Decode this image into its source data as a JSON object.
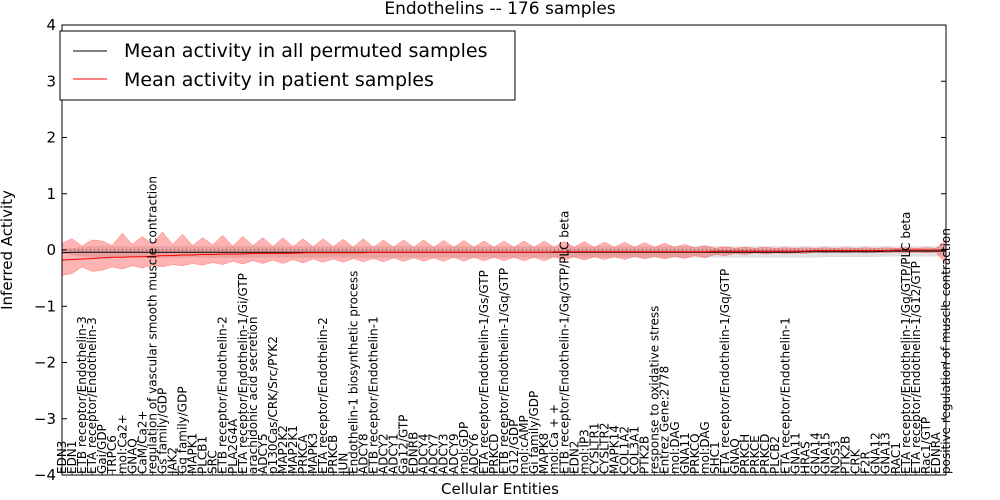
{
  "chart_data": {
    "type": "line",
    "title": "Endothelins -- 176 samples",
    "xlabel": "Cellular Entities",
    "ylabel": "Inferred Activity",
    "ylim": [
      -4,
      4
    ],
    "yticks": [
      -4,
      -3,
      -2,
      -1,
      0,
      1,
      2,
      3,
      4
    ],
    "grid": false,
    "legend_position": "top-left",
    "categories": [
      "EDN3",
      "EDN1",
      "ETB receptor/Endothelin-3",
      "ETA receptor/Endothelin-3",
      "Gai/GDP",
      "TRPC6",
      "mol:Ca2+",
      "GNAQ",
      "CaM/Ca2+",
      "regulation of vascular smooth muscle contraction",
      "Gs family/GDP",
      "JAK2",
      "Gq family/GDP",
      "MAPK1",
      "PLCB1",
      "SRC",
      "ETB receptor/Endothelin-2",
      "PLA2G4A",
      "ETA receptor/Endothelin-1/Gi/GTP",
      "arachidonic acid secretion",
      "ADCY5",
      "p130Cas/CRK/Src/PYK2",
      "MAP2K2",
      "MAP2K1",
      "PRKCA",
      "MAPK3",
      "ETA receptor/Endothelin-2",
      "PRKCB",
      "JUN",
      "Endothelin-1 biosynthetic process",
      "ADCY8",
      "ETB receptor/Endothelin-1",
      "ADCY2",
      "ADCY1",
      "Ga12/GTP",
      "EDNRB",
      "ADCY4",
      "ADCY7",
      "ADCY3",
      "ADCY9",
      "mol:GDP",
      "ADCY6",
      "ETA receptor/Endothelin-1/Gs/GTP",
      "PRKCD",
      "ETB receptor/Endothelin-1/Gq/GTP",
      "G12/GDP",
      "mol:cAMP",
      "Gi family/GDP",
      "MAPK8",
      "mol:Ca + +",
      "ETB receptor/Endothelin-1/Gq/GTP/PLC beta",
      "EDN2",
      "mol:IP3",
      "CYSLTR1",
      "CYSLTR2",
      "MAPK14",
      "COL1A2",
      "COL3A1",
      "PTK2B",
      "response to oxidative stress",
      "Entrez Gene:2778",
      "mol:DAG",
      "GNA11",
      "PRKCQ",
      "mol:DAG",
      "SHC1",
      "ETA receptor/Endothelin-1/Gq/GTP",
      "GNAQ",
      "PRKCH",
      "PRKCE",
      "PRKCD",
      "PLCB2",
      "ETA receptor/Endothelin-1",
      "GNA11",
      "HRAS",
      "GNA14",
      "GNA15",
      "NOS3",
      "PTK2B",
      "CRK",
      "F2R",
      "GNA12",
      "GNA13",
      "RAC1",
      "ETA receptor/Endothelin-1/Gq/GTP/PLC beta",
      "ETA receptor/Endothelin-1/G12/GTP",
      "Rac1/GTP",
      "EDNRA",
      "positive regulation of muscle contraction"
    ],
    "series": [
      {
        "name": "Mean activity in all permuted samples",
        "color": "#000000",
        "values": [
          -0.05,
          -0.04,
          -0.04,
          -0.04,
          -0.04,
          -0.04,
          -0.04,
          -0.04,
          -0.04,
          -0.04,
          -0.04,
          -0.04,
          -0.04,
          -0.04,
          -0.04,
          -0.04,
          -0.04,
          -0.04,
          -0.04,
          -0.04,
          -0.04,
          -0.04,
          -0.04,
          -0.04,
          -0.04,
          -0.04,
          -0.04,
          -0.04,
          -0.04,
          -0.04,
          -0.04,
          -0.04,
          -0.04,
          -0.04,
          -0.04,
          -0.04,
          -0.04,
          -0.04,
          -0.04,
          -0.04,
          -0.04,
          -0.04,
          -0.04,
          -0.04,
          -0.04,
          -0.04,
          -0.04,
          -0.04,
          -0.04,
          -0.04,
          -0.04,
          -0.04,
          -0.04,
          -0.04,
          -0.04,
          -0.04,
          -0.04,
          -0.04,
          -0.04,
          -0.04,
          -0.04,
          -0.04,
          -0.04,
          -0.04,
          -0.04,
          -0.04,
          -0.04,
          -0.04,
          -0.04,
          -0.04,
          -0.04,
          -0.04,
          -0.04,
          -0.04,
          -0.03,
          -0.03,
          -0.03,
          -0.03,
          -0.03,
          -0.03,
          -0.03,
          -0.03,
          -0.02,
          -0.02,
          -0.02,
          -0.02,
          -0.02,
          -0.02,
          -0.02
        ],
        "lower": [
          -0.05,
          -0.09,
          -0.11,
          -0.12,
          -0.13,
          -0.13,
          -0.13,
          -0.13,
          -0.13,
          -0.13,
          -0.13,
          -0.13,
          -0.13,
          -0.13,
          -0.13,
          -0.13,
          -0.13,
          -0.13,
          -0.13,
          -0.13,
          -0.13,
          -0.13,
          -0.13,
          -0.13,
          -0.13,
          -0.13,
          -0.13,
          -0.13,
          -0.13,
          -0.13,
          -0.13,
          -0.13,
          -0.13,
          -0.13,
          -0.13,
          -0.13,
          -0.13,
          -0.13,
          -0.13,
          -0.13,
          -0.13,
          -0.13,
          -0.13,
          -0.13,
          -0.13,
          -0.13,
          -0.13,
          -0.13,
          -0.13,
          -0.13,
          -0.13,
          -0.13,
          -0.13,
          -0.13,
          -0.13,
          -0.13,
          -0.13,
          -0.13,
          -0.13,
          -0.13,
          -0.13,
          -0.13,
          -0.13,
          -0.13,
          -0.13,
          -0.13,
          -0.13,
          -0.13,
          -0.13,
          -0.13,
          -0.13,
          -0.13,
          -0.13,
          -0.13,
          -0.13,
          -0.13,
          -0.12,
          -0.12,
          -0.12,
          -0.12,
          -0.12,
          -0.12,
          -0.11,
          -0.11,
          -0.11,
          -0.11,
          -0.11,
          -0.11,
          -0.11
        ],
        "upper": [
          0.02,
          0.03,
          0.05,
          0.06,
          0.06,
          0.06,
          0.06,
          0.06,
          0.06,
          0.06,
          0.06,
          0.06,
          0.06,
          0.06,
          0.06,
          0.06,
          0.06,
          0.06,
          0.06,
          0.06,
          0.06,
          0.06,
          0.06,
          0.06,
          0.06,
          0.06,
          0.06,
          0.06,
          0.06,
          0.06,
          0.06,
          0.06,
          0.06,
          0.06,
          0.06,
          0.06,
          0.06,
          0.06,
          0.06,
          0.06,
          0.06,
          0.06,
          0.06,
          0.06,
          0.06,
          0.06,
          0.06,
          0.06,
          0.06,
          0.06,
          0.06,
          0.06,
          0.06,
          0.06,
          0.06,
          0.06,
          0.06,
          0.06,
          0.06,
          0.06,
          0.06,
          0.06,
          0.06,
          0.06,
          0.06,
          0.06,
          0.06,
          0.06,
          0.06,
          0.06,
          0.06,
          0.06,
          0.06,
          0.06,
          0.06,
          0.06,
          0.06,
          0.06,
          0.06,
          0.06,
          0.06,
          0.06,
          0.06,
          0.06,
          0.06,
          0.06,
          0.06,
          0.06,
          0.06
        ]
      },
      {
        "name": "Mean activity in patient samples",
        "color": "#ff0000",
        "values": [
          -0.18,
          -0.17,
          -0.16,
          -0.15,
          -0.14,
          -0.13,
          -0.13,
          -0.12,
          -0.12,
          -0.11,
          -0.1,
          -0.1,
          -0.09,
          -0.09,
          -0.08,
          -0.08,
          -0.07,
          -0.07,
          -0.07,
          -0.06,
          -0.06,
          -0.06,
          -0.06,
          -0.06,
          -0.05,
          -0.05,
          -0.05,
          -0.05,
          -0.05,
          -0.05,
          -0.05,
          -0.04,
          -0.04,
          -0.04,
          -0.04,
          -0.04,
          -0.04,
          -0.04,
          -0.04,
          -0.04,
          -0.04,
          -0.04,
          -0.04,
          -0.04,
          -0.04,
          -0.04,
          -0.04,
          -0.04,
          -0.04,
          -0.03,
          -0.03,
          -0.03,
          -0.03,
          -0.03,
          -0.03,
          -0.03,
          -0.03,
          -0.03,
          -0.03,
          -0.03,
          -0.03,
          -0.03,
          -0.03,
          -0.03,
          -0.03,
          -0.02,
          -0.02,
          -0.02,
          -0.02,
          -0.02,
          -0.02,
          -0.02,
          -0.02,
          -0.02,
          -0.02,
          -0.01,
          -0.01,
          -0.01,
          -0.01,
          -0.01,
          -0.01,
          -0.01,
          -0.01,
          0.0,
          0.0,
          0.0,
          0.0,
          0.0,
          0.0
        ],
        "lower": [
          -0.45,
          -0.42,
          -0.3,
          -0.38,
          -0.36,
          -0.3,
          -0.34,
          -0.28,
          -0.32,
          -0.27,
          -0.3,
          -0.26,
          -0.28,
          -0.24,
          -0.27,
          -0.22,
          -0.26,
          -0.2,
          -0.25,
          -0.19,
          -0.24,
          -0.18,
          -0.24,
          -0.17,
          -0.23,
          -0.16,
          -0.22,
          -0.16,
          -0.22,
          -0.15,
          -0.21,
          -0.15,
          -0.21,
          -0.14,
          -0.2,
          -0.14,
          -0.2,
          -0.14,
          -0.2,
          -0.13,
          -0.2,
          -0.13,
          -0.19,
          -0.13,
          -0.19,
          -0.13,
          -0.19,
          -0.13,
          -0.19,
          -0.12,
          -0.18,
          -0.12,
          -0.18,
          -0.12,
          -0.17,
          -0.12,
          -0.17,
          -0.11,
          -0.16,
          -0.11,
          -0.16,
          -0.11,
          -0.15,
          -0.1,
          -0.14,
          -0.08,
          -0.1,
          -0.06,
          -0.08,
          -0.05,
          -0.07,
          -0.05,
          -0.06,
          -0.05,
          -0.06,
          -0.04,
          -0.05,
          -0.04,
          -0.05,
          -0.04,
          -0.05,
          -0.04,
          -0.05,
          -0.04,
          -0.05,
          -0.04,
          -0.05,
          -0.04,
          -0.25
        ],
        "upper": [
          0.12,
          0.2,
          0.07,
          0.18,
          0.16,
          0.08,
          0.3,
          0.1,
          0.24,
          0.1,
          0.32,
          0.1,
          0.28,
          0.08,
          0.22,
          0.09,
          0.26,
          0.07,
          0.24,
          0.08,
          0.22,
          0.06,
          0.22,
          0.06,
          0.2,
          0.06,
          0.2,
          0.06,
          0.19,
          0.05,
          0.2,
          0.05,
          0.18,
          0.05,
          0.18,
          0.05,
          0.18,
          0.05,
          0.17,
          0.05,
          0.17,
          0.05,
          0.16,
          0.05,
          0.16,
          0.05,
          0.16,
          0.05,
          0.16,
          0.05,
          0.15,
          0.05,
          0.15,
          0.05,
          0.14,
          0.05,
          0.14,
          0.05,
          0.13,
          0.05,
          0.12,
          0.05,
          0.1,
          0.04,
          0.08,
          0.03,
          0.06,
          0.03,
          0.05,
          0.03,
          0.05,
          0.03,
          0.04,
          0.03,
          0.04,
          0.03,
          0.04,
          0.03,
          0.04,
          0.03,
          0.04,
          0.03,
          0.04,
          0.03,
          0.04,
          0.03,
          0.04,
          0.03,
          0.18
        ]
      }
    ]
  }
}
